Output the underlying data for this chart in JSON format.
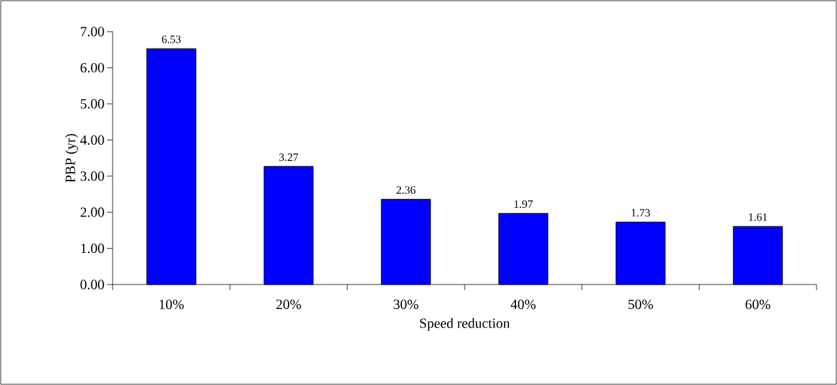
{
  "chart_data": {
    "type": "bar",
    "xlabel": "Speed reduction",
    "ylabel": "PBP (yr)",
    "categories": [
      "10%",
      "20%",
      "30%",
      "40%",
      "50%",
      "60%"
    ],
    "values": [
      6.53,
      3.27,
      2.36,
      1.97,
      1.73,
      1.61
    ],
    "color": "#0000ff",
    "ylim": [
      0,
      7
    ],
    "yticks": [
      {
        "value": 0,
        "label": "0.00"
      },
      {
        "value": 1,
        "label": "1.00"
      },
      {
        "value": 2,
        "label": "2.00"
      },
      {
        "value": 3,
        "label": "3.00"
      },
      {
        "value": 4,
        "label": "4.00"
      },
      {
        "value": 5,
        "label": "5.00"
      },
      {
        "value": 6,
        "label": "6.00"
      },
      {
        "value": 7,
        "label": "7.00"
      }
    ],
    "data_labels": true,
    "grid": false
  }
}
